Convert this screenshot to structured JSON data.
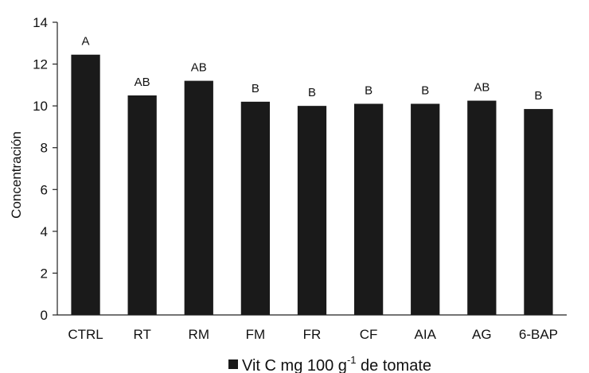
{
  "chart_data": {
    "type": "bar",
    "categories": [
      "CTRL",
      "RT",
      "RM",
      "FM",
      "FR",
      "CF",
      "AIA",
      "AG",
      "6-BAP"
    ],
    "series": [
      {
        "name": "Vit C mg 100 g-1 de tomate",
        "values": [
          12.45,
          10.5,
          11.2,
          10.2,
          10.0,
          10.1,
          10.1,
          10.25,
          9.85
        ],
        "color": "#1a1a1a"
      }
    ],
    "data_labels": [
      "A",
      "AB",
      "AB",
      "B",
      "B",
      "B",
      "B",
      "AB",
      "B"
    ],
    "ylabel": "Concentración",
    "xlabel": "",
    "ylim": [
      0,
      14
    ],
    "yticks": [
      0,
      2,
      4,
      6,
      8,
      10,
      12,
      14
    ],
    "grid": false,
    "legend": {
      "position": "bottom",
      "label_prefix": "Vit C mg 100 g",
      "label_superscript": "-1",
      "label_suffix": " de tomate"
    }
  }
}
